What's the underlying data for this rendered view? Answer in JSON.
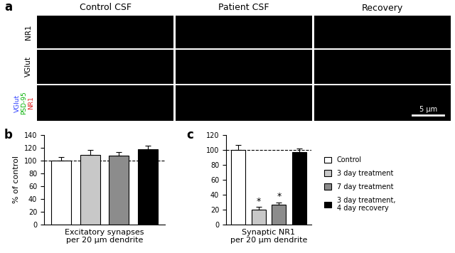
{
  "panel_a": {
    "panel": "a",
    "columns": [
      "Control CSF",
      "Patient CSF",
      "Recovery"
    ],
    "rows": [
      {
        "labels": [
          {
            "text": "NR1",
            "color": "#000000"
          }
        ]
      },
      {
        "labels": [
          {
            "text": "VGlut",
            "color": "#000000"
          }
        ]
      },
      {
        "labels": [
          {
            "text": "VGlut",
            "color": "#2a3cff"
          },
          {
            "text": "PSD-95",
            "color": "#00b000"
          },
          {
            "text": "NR1",
            "color": "#e02020"
          }
        ]
      }
    ],
    "scale_bar": "5 μm"
  },
  "chart_data": [
    {
      "type": "bar",
      "panel": "b",
      "categories": [
        "Control",
        "3 day treatment",
        "7 day treatment",
        "3 day treatment,\n4 day recovery"
      ],
      "values": [
        100,
        109,
        108,
        118
      ],
      "errors": [
        6,
        8,
        5,
        5
      ],
      "colors": [
        "#ffffff",
        "#c8c8c8",
        "#8c8c8c",
        "#000000"
      ],
      "xlabel": "Excitatory synapses\nper 20 μm dendrite",
      "ylabel": "% of control",
      "ylim": [
        0,
        140
      ],
      "yticks": [
        0,
        20,
        40,
        60,
        80,
        100,
        120,
        140
      ],
      "reference_line": 100,
      "tick_labels": "y"
    },
    {
      "type": "bar",
      "panel": "c",
      "categories": [
        "Control",
        "3 day treatment",
        "7 day treatment",
        "3 day treatment,\n4 day recovery"
      ],
      "values": [
        100,
        20,
        27,
        97
      ],
      "errors": [
        7,
        4,
        3,
        5
      ],
      "colors": [
        "#ffffff",
        "#c8c8c8",
        "#8c8c8c",
        "#000000"
      ],
      "significance": [
        null,
        "*",
        "*",
        null
      ],
      "xlabel": "Synaptic NR1\nper 20 μm dendrite",
      "ylim": [
        0,
        120
      ],
      "yticks": [
        0,
        20,
        40,
        60,
        80,
        100,
        120
      ],
      "reference_line": 100,
      "tick_labels": "y",
      "legend": "right"
    }
  ]
}
